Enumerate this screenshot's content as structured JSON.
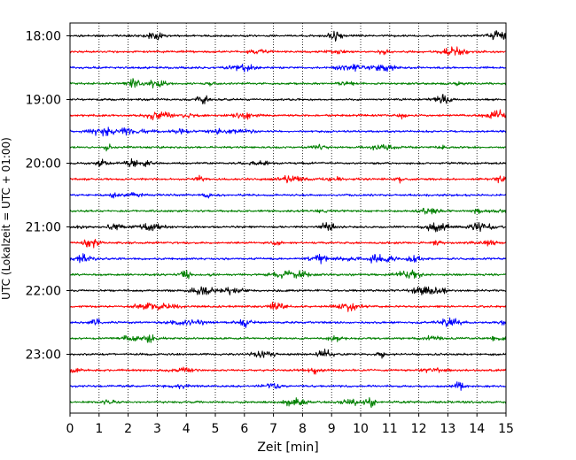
{
  "chart_data": {
    "type": "line",
    "title": "",
    "xlabel": "Zeit  [min]",
    "ylabel": "UTC (Lokalzeit = UTC + 01:00)",
    "xlim": [
      0,
      15
    ],
    "x_ticks": [
      "0",
      "1",
      "2",
      "3",
      "4",
      "5",
      "6",
      "7",
      "8",
      "9",
      "10",
      "11",
      "12",
      "13",
      "14",
      "15"
    ],
    "y_tick_labels": [
      "18:00",
      "19:00",
      "20:00",
      "21:00",
      "22:00",
      "23:00"
    ],
    "grid": "vertical dotted at each minute",
    "traces_per_hour": 4,
    "trace_interval_min": 15,
    "colors_cycle": [
      "#000000",
      "#ff0000",
      "#0000ff",
      "#008000"
    ],
    "series": [
      {
        "start": "18:00",
        "color": "#000000"
      },
      {
        "start": "18:15",
        "color": "#ff0000"
      },
      {
        "start": "18:30",
        "color": "#0000ff"
      },
      {
        "start": "18:45",
        "color": "#008000"
      },
      {
        "start": "19:00",
        "color": "#000000"
      },
      {
        "start": "19:15",
        "color": "#ff0000"
      },
      {
        "start": "19:30",
        "color": "#0000ff"
      },
      {
        "start": "19:45",
        "color": "#008000"
      },
      {
        "start": "20:00",
        "color": "#000000"
      },
      {
        "start": "20:15",
        "color": "#ff0000"
      },
      {
        "start": "20:30",
        "color": "#0000ff"
      },
      {
        "start": "20:45",
        "color": "#008000"
      },
      {
        "start": "21:00",
        "color": "#000000"
      },
      {
        "start": "21:15",
        "color": "#ff0000"
      },
      {
        "start": "21:30",
        "color": "#0000ff"
      },
      {
        "start": "21:45",
        "color": "#008000"
      },
      {
        "start": "22:00",
        "color": "#000000"
      },
      {
        "start": "22:15",
        "color": "#ff0000"
      },
      {
        "start": "22:30",
        "color": "#0000ff"
      },
      {
        "start": "22:45",
        "color": "#008000"
      },
      {
        "start": "23:00",
        "color": "#000000"
      },
      {
        "start": "23:15",
        "color": "#ff0000"
      },
      {
        "start": "23:30",
        "color": "#0000ff"
      },
      {
        "start": "23:45",
        "color": "#008000"
      }
    ]
  }
}
